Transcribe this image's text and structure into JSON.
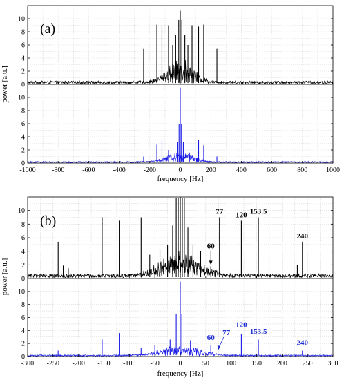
{
  "ylabel": "power [a.u.]",
  "colors": {
    "top": "#000000",
    "bottom": "#1a1ae6",
    "grid": "#d9d9d9",
    "axis": "#000000",
    "annot_blue": "#1f2fd0"
  },
  "chart_data": [
    {
      "panel": "(a)",
      "type": "line",
      "xlabel": "frequency [Hz]",
      "xlim": [
        -1000,
        1000
      ],
      "xticks": [
        -1000,
        -800,
        -600,
        -400,
        -200,
        0,
        200,
        400,
        600,
        800,
        1000
      ],
      "ylim": [
        0,
        12
      ],
      "yticks": [
        0,
        2,
        4,
        6,
        8,
        10
      ],
      "grid": true,
      "series": [
        {
          "position": "top",
          "color": "#000000",
          "peaks": [
            {
              "x": -240,
              "y": 5.4
            },
            {
              "x": -153.5,
              "y": 9.1
            },
            {
              "x": -120,
              "y": 8.9
            },
            {
              "x": -77,
              "y": 9.0
            },
            {
              "x": -50,
              "y": 6.0
            },
            {
              "x": -30,
              "y": 7.5
            },
            {
              "x": -10,
              "y": 9.8
            },
            {
              "x": 0,
              "y": 11.2
            },
            {
              "x": 10,
              "y": 9.8
            },
            {
              "x": 30,
              "y": 7.5
            },
            {
              "x": 50,
              "y": 6.0
            },
            {
              "x": 77,
              "y": 9.0
            },
            {
              "x": 120,
              "y": 8.8
            },
            {
              "x": 153.5,
              "y": 9.1
            },
            {
              "x": 240,
              "y": 5.4
            }
          ],
          "noise_floor": 0.3
        },
        {
          "position": "bottom",
          "color": "#1a1ae6",
          "peaks": [
            {
              "x": -240,
              "y": 1.0
            },
            {
              "x": -153.5,
              "y": 2.8
            },
            {
              "x": -120,
              "y": 3.6
            },
            {
              "x": -77,
              "y": 2.0
            },
            {
              "x": -20,
              "y": 3.2
            },
            {
              "x": -8,
              "y": 6.0
            },
            {
              "x": 0,
              "y": 11.5
            },
            {
              "x": 8,
              "y": 6.0
            },
            {
              "x": 20,
              "y": 3.2
            },
            {
              "x": 60,
              "y": 1.6
            },
            {
              "x": 120,
              "y": 3.5
            },
            {
              "x": 153.5,
              "y": 2.7
            },
            {
              "x": 240,
              "y": 1.0
            }
          ],
          "noise_floor": 0.15
        }
      ]
    },
    {
      "panel": "(b)",
      "type": "line",
      "xlabel": "frequency [Hz]",
      "xlim": [
        -300,
        300
      ],
      "xticks": [
        -300,
        -250,
        -200,
        -150,
        -100,
        -50,
        0,
        50,
        100,
        150,
        200,
        250,
        300
      ],
      "ylim": [
        0,
        12
      ],
      "yticks": [
        0,
        2,
        4,
        6,
        8,
        10
      ],
      "grid": true,
      "series": [
        {
          "position": "top",
          "color": "#000000",
          "peaks": [
            {
              "x": -240,
              "y": 5.4
            },
            {
              "x": -230,
              "y": 1.9
            },
            {
              "x": -220,
              "y": 1.5
            },
            {
              "x": -153.5,
              "y": 9.0
            },
            {
              "x": -120,
              "y": 8.5
            },
            {
              "x": -77,
              "y": 9.0
            },
            {
              "x": -60,
              "y": 3.5
            },
            {
              "x": -40,
              "y": 4.2
            },
            {
              "x": -25,
              "y": 5.0
            },
            {
              "x": -15,
              "y": 7.8
            },
            {
              "x": -8,
              "y": 11.8
            },
            {
              "x": -4,
              "y": 11.8
            },
            {
              "x": 0,
              "y": 12.0
            },
            {
              "x": 4,
              "y": 11.8
            },
            {
              "x": 8,
              "y": 11.8
            },
            {
              "x": 15,
              "y": 7.5
            },
            {
              "x": 25,
              "y": 5.0
            },
            {
              "x": 40,
              "y": 4.0
            },
            {
              "x": 60,
              "y": 1.8
            },
            {
              "x": 77,
              "y": 9.0
            },
            {
              "x": 120,
              "y": 8.5
            },
            {
              "x": 153.5,
              "y": 9.0
            },
            {
              "x": 230,
              "y": 2.0
            },
            {
              "x": 240,
              "y": 5.4
            }
          ],
          "noise_floor": 0.4
        },
        {
          "position": "bottom",
          "color": "#1a1ae6",
          "peaks": [
            {
              "x": -240,
              "y": 0.9
            },
            {
              "x": -153.5,
              "y": 2.6
            },
            {
              "x": -120,
              "y": 3.6
            },
            {
              "x": -77,
              "y": 1.3
            },
            {
              "x": -50,
              "y": 1.8
            },
            {
              "x": -20,
              "y": 2.6
            },
            {
              "x": -8,
              "y": 6.5
            },
            {
              "x": 0,
              "y": 11.5
            },
            {
              "x": 3,
              "y": 6.5
            },
            {
              "x": 20,
              "y": 2.5
            },
            {
              "x": 60,
              "y": 1.8
            },
            {
              "x": 120,
              "y": 3.5
            },
            {
              "x": 153.5,
              "y": 2.6
            },
            {
              "x": 240,
              "y": 0.9
            }
          ],
          "noise_floor": 0.15
        }
      ],
      "annotations": [
        {
          "series": "top",
          "text": "77",
          "x": 77
        },
        {
          "series": "top",
          "text": "120",
          "x": 120
        },
        {
          "series": "top",
          "text": "153.5",
          "x": 153.5
        },
        {
          "series": "top",
          "text": "240",
          "x": 240
        },
        {
          "series": "top",
          "text": "60",
          "x": 60,
          "arrow": true
        },
        {
          "series": "bottom",
          "text": "60",
          "x": 60
        },
        {
          "series": "bottom",
          "text": "77",
          "x": 77,
          "arrow": true
        },
        {
          "series": "bottom",
          "text": "120",
          "x": 120
        },
        {
          "series": "bottom",
          "text": "153.5",
          "x": 153.5
        },
        {
          "series": "bottom",
          "text": "240",
          "x": 240
        }
      ]
    }
  ]
}
